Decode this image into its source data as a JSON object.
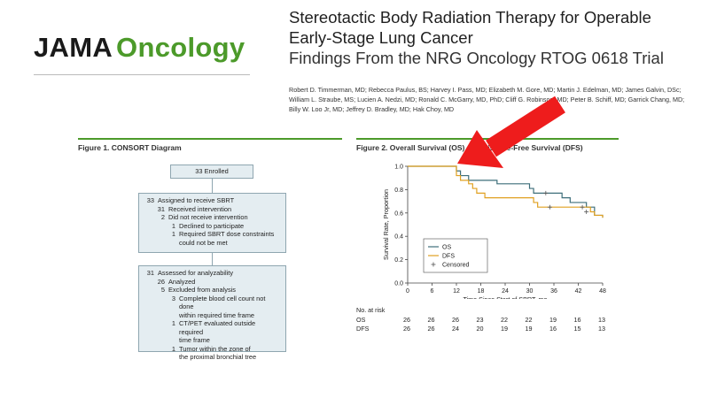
{
  "journal": {
    "name1": "JAMA",
    "name2": "Oncology",
    "brand_color": "#4c9a2a"
  },
  "article": {
    "title_line1": "Stereotactic Body Radiation Therapy for Operable",
    "title_line2": "Early-Stage Lung Cancer",
    "subtitle": "Findings From the NRG Oncology RTOG 0618 Trial",
    "authors_line1": "Robert D. Timmerman, MD; Rebecca Paulus, BS; Harvey I. Pass, MD; Elizabeth M. Gore, MD; Martin J. Edelman, MD; James Galvin, DSc;",
    "authors_line2": "William L. Straube, MS; Lucien A. Nedzi, MD; Ronald C. McGarry, MD, PhD; Cliff G. Robinson, MD; Peter B. Schiff, MD; Garrick Chang, MD;",
    "authors_line3": "Billy W. Loo Jr, MD; Jeffrey D. Bradley, MD; Hak Choy, MD"
  },
  "figure1": {
    "heading": "Figure 1. CONSORT Diagram",
    "enrolled": {
      "n": "33",
      "label": "Enrolled"
    },
    "assigned": [
      {
        "n": "33",
        "text": "Assigned to receive SBRT",
        "level": 0
      },
      {
        "n": "31",
        "text": "Received intervention",
        "level": 1
      },
      {
        "n": "2",
        "text": "Did not receive intervention",
        "level": 1
      },
      {
        "n": "1",
        "text": "Declined to participate",
        "level": 2
      },
      {
        "n": "1",
        "text": "Required SBRT dose constraints",
        "level": 2
      },
      {
        "n": "",
        "text": "could not be met",
        "level": 2
      }
    ],
    "assessed": [
      {
        "n": "31",
        "text": "Assessed for analyzability",
        "level": 0
      },
      {
        "n": "26",
        "text": "Analyzed",
        "level": 1
      },
      {
        "n": "5",
        "text": "Excluded from analysis",
        "level": 1
      },
      {
        "n": "3",
        "text": "Complete blood cell count not done",
        "level": 2
      },
      {
        "n": "",
        "text": "within required time frame",
        "level": 2
      },
      {
        "n": "1",
        "text": "CT/PET evaluated outside required",
        "level": 2
      },
      {
        "n": "",
        "text": "time frame",
        "level": 2
      },
      {
        "n": "1",
        "text": "Tumor within the zone of",
        "level": 2
      },
      {
        "n": "",
        "text": "the proximal bronchial tree",
        "level": 2
      }
    ]
  },
  "figure2": {
    "heading": "Figure 2. Overall Survival (OS) and Disease-Free Survival (DFS)",
    "risk_header": "No. at risk",
    "risk_rows": [
      {
        "label": "OS",
        "values": [
          "26",
          "26",
          "26",
          "23",
          "22",
          "22",
          "19",
          "16",
          "13"
        ]
      },
      {
        "label": "DFS",
        "values": [
          "26",
          "26",
          "24",
          "20",
          "19",
          "19",
          "16",
          "15",
          "13"
        ]
      }
    ]
  },
  "chart_data": {
    "type": "line",
    "xlabel": "Time Since Start of SBRT, mo",
    "ylabel": "Survival Rate, Proportion",
    "xlim": [
      0,
      48
    ],
    "ylim": [
      0,
      1.0
    ],
    "xticks": [
      0,
      6,
      12,
      18,
      24,
      30,
      36,
      42,
      48
    ],
    "yticks": [
      0,
      0.2,
      0.4,
      0.6,
      0.8,
      1.0
    ],
    "legend_position": "bottom-left",
    "grid": false,
    "series": [
      {
        "name": "OS",
        "color": "#3d6e7a",
        "steps": [
          [
            0,
            1.0
          ],
          [
            11,
            1.0
          ],
          [
            12,
            0.96
          ],
          [
            13,
            0.92
          ],
          [
            15,
            0.88
          ],
          [
            22,
            0.85
          ],
          [
            30,
            0.81
          ],
          [
            31,
            0.77
          ],
          [
            38,
            0.73
          ],
          [
            40,
            0.69
          ],
          [
            44,
            0.65
          ],
          [
            46,
            0.58
          ],
          [
            48,
            0.56
          ]
        ]
      },
      {
        "name": "DFS",
        "color": "#e0a020",
        "steps": [
          [
            0,
            1.0
          ],
          [
            11,
            1.0
          ],
          [
            12,
            0.92
          ],
          [
            13,
            0.88
          ],
          [
            15,
            0.85
          ],
          [
            16,
            0.81
          ],
          [
            17,
            0.77
          ],
          [
            19,
            0.73
          ],
          [
            31,
            0.69
          ],
          [
            32,
            0.65
          ],
          [
            45,
            0.61
          ],
          [
            46,
            0.58
          ],
          [
            48,
            0.56
          ]
        ]
      }
    ],
    "censored_label": "Censored",
    "censored_os": [
      [
        34,
        0.77
      ],
      [
        43,
        0.65
      ]
    ],
    "censored_dfs": [
      [
        35,
        0.65
      ],
      [
        44,
        0.61
      ]
    ]
  },
  "annotation": {
    "arrow_color": "#ee1c1c"
  }
}
